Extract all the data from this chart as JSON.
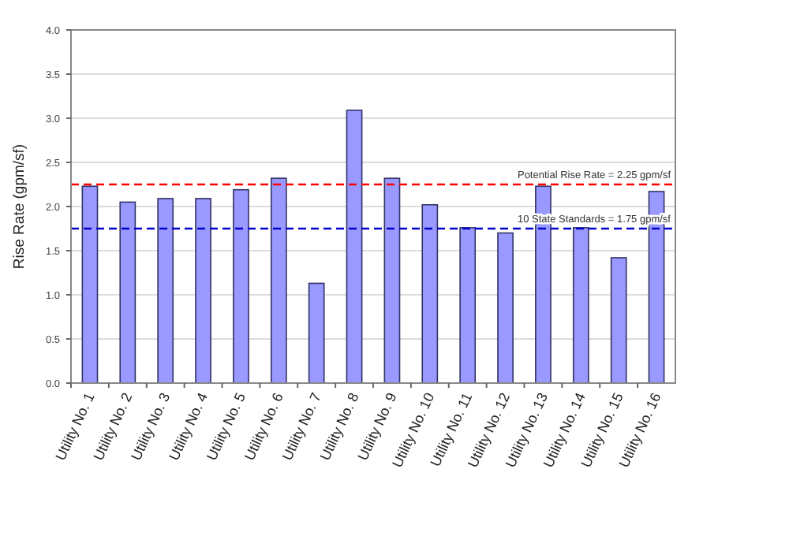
{
  "chart_data": {
    "type": "bar",
    "ylabel": "Rise Rate (gpm/sf)",
    "categories": [
      "Utility No. 1",
      "Utility No. 2",
      "Utility No. 3",
      "Utility No. 4",
      "Utility No. 5",
      "Utility No. 6",
      "Utility No. 7",
      "Utility No. 8",
      "Utility No. 9",
      "Utility No. 10",
      "Utility No. 11",
      "Utility No. 12",
      "Utility No. 13",
      "Utility No. 14",
      "Utility No. 15",
      "Utility No. 16"
    ],
    "values": [
      2.23,
      2.05,
      2.09,
      2.09,
      2.19,
      2.32,
      1.13,
      3.09,
      2.32,
      2.02,
      1.76,
      1.7,
      2.23,
      1.76,
      1.42,
      2.17
    ],
    "color": "#9999ff",
    "ylim": [
      0,
      4
    ],
    "yticks": [
      {
        "value": 0,
        "label": "0.0"
      },
      {
        "value": 0.5,
        "label": "0.5"
      },
      {
        "value": 1,
        "label": "1.0"
      },
      {
        "value": 1.5,
        "label": "1.5"
      },
      {
        "value": 2,
        "label": "2.0"
      },
      {
        "value": 2.5,
        "label": "2.5"
      },
      {
        "value": 3,
        "label": "3.0"
      },
      {
        "value": 3.5,
        "label": "3.5"
      },
      {
        "value": 4,
        "label": "4.0"
      }
    ],
    "grid": "y",
    "ref_lines": [
      {
        "axis": "y",
        "value": 2.25,
        "label": "Potential Rise Rate = 2.25 gpm/sf",
        "color": "#ff0000",
        "line_style": "dashed"
      },
      {
        "axis": "y",
        "value": 1.75,
        "label": "10 State Standards = 1.75 gpm/sf",
        "color": "#0000cc",
        "line_style": "dashed"
      }
    ]
  }
}
